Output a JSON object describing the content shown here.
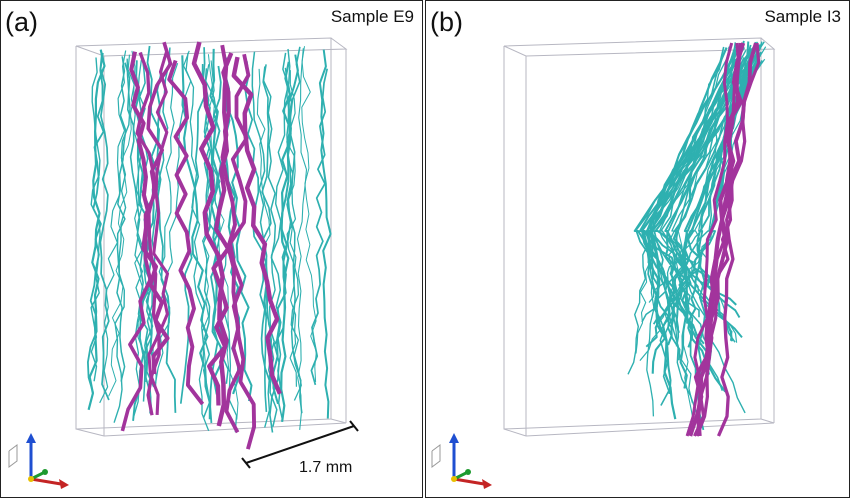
{
  "panels": [
    {
      "letter": "(a)",
      "sample": "Sample E9",
      "scale_bar_label": "1.7 mm"
    },
    {
      "letter": "(b)",
      "sample": "Sample I3"
    }
  ],
  "colors": {
    "background": "#ffffff",
    "border": "#222222",
    "bounding_box": "#b7b7c2",
    "teal_fibers": "#2eb0b0",
    "magenta_fibers": "#a2349c",
    "axis_blue": "#1f4fd1",
    "axis_green": "#1d9a2e",
    "axis_red": "#c42424"
  },
  "icons": [
    "xyz-axes-icon",
    "xyz-axes-icon"
  ]
}
